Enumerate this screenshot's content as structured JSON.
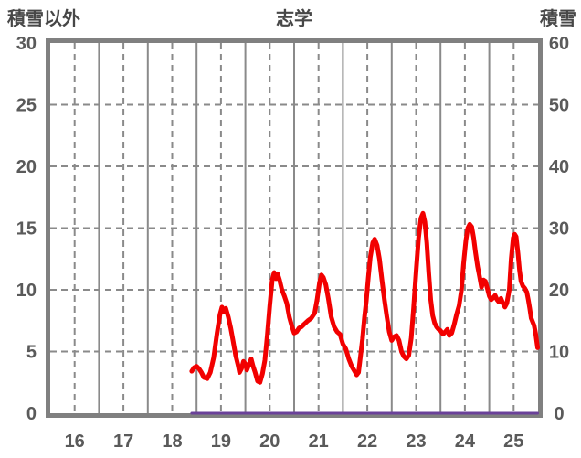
{
  "page": {
    "background": "#ffffff"
  },
  "chart_data": {
    "type": "line",
    "title": "志学",
    "left_axis_title": "積雪以外",
    "right_axis_title": "積雪",
    "left_axis": {
      "min": 0,
      "max": 30,
      "tick_step": 5,
      "ticks": [
        "0",
        "5",
        "10",
        "15",
        "20",
        "25",
        "30"
      ]
    },
    "right_axis": {
      "min": 0,
      "max": 60,
      "tick_step": 10,
      "ticks": [
        "0",
        "10",
        "20",
        "30",
        "40",
        "50",
        "60"
      ]
    },
    "x_axis": {
      "min_day": 16,
      "max_day": 26,
      "tick_labels": [
        "16",
        "17",
        "18",
        "19",
        "20",
        "21",
        "22",
        "23",
        "24",
        "25"
      ],
      "solid_gridlines_at": "day-boundaries",
      "dashed_gridlines_at": "day-midpoints"
    },
    "grid": {
      "on": true,
      "gridline_color": "#8a8a8a",
      "border_color": "#808080"
    },
    "colors": {
      "tick_label": "#5a5a5a",
      "title": "#474747"
    },
    "series": [
      {
        "name": "積雪",
        "axis": "right",
        "color": "#6a4199",
        "width": 3,
        "points": [
          [
            18.9,
            0
          ],
          [
            25.99,
            0
          ]
        ]
      },
      {
        "name": "積雪以外",
        "axis": "left",
        "color": "#f20000",
        "width": 5,
        "points": [
          [
            18.9,
            3.4
          ],
          [
            18.95,
            3.7
          ],
          [
            19.0,
            3.8
          ],
          [
            19.05,
            3.6
          ],
          [
            19.1,
            3.3
          ],
          [
            19.15,
            2.9
          ],
          [
            19.22,
            2.8
          ],
          [
            19.28,
            3.3
          ],
          [
            19.35,
            4.5
          ],
          [
            19.42,
            6.5
          ],
          [
            19.48,
            8.0
          ],
          [
            19.52,
            8.6
          ],
          [
            19.56,
            8.2
          ],
          [
            19.6,
            8.5
          ],
          [
            19.65,
            7.8
          ],
          [
            19.7,
            6.9
          ],
          [
            19.75,
            5.8
          ],
          [
            19.8,
            4.7
          ],
          [
            19.85,
            3.9
          ],
          [
            19.88,
            3.3
          ],
          [
            19.92,
            3.6
          ],
          [
            19.96,
            4.2
          ],
          [
            20.0,
            4.0
          ],
          [
            20.03,
            3.5
          ],
          [
            20.07,
            3.9
          ],
          [
            20.12,
            4.4
          ],
          [
            20.16,
            3.8
          ],
          [
            20.2,
            3.3
          ],
          [
            20.25,
            2.6
          ],
          [
            20.3,
            2.5
          ],
          [
            20.35,
            3.2
          ],
          [
            20.4,
            4.3
          ],
          [
            20.45,
            6.3
          ],
          [
            20.5,
            8.7
          ],
          [
            20.55,
            10.8
          ],
          [
            20.59,
            11.4
          ],
          [
            20.63,
            10.9
          ],
          [
            20.66,
            11.3
          ],
          [
            20.7,
            10.8
          ],
          [
            20.75,
            10.0
          ],
          [
            20.8,
            9.5
          ],
          [
            20.85,
            8.9
          ],
          [
            20.9,
            7.8
          ],
          [
            20.95,
            7.1
          ],
          [
            21.0,
            6.5
          ],
          [
            21.05,
            6.6
          ],
          [
            21.1,
            6.9
          ],
          [
            21.15,
            7.0
          ],
          [
            21.2,
            7.2
          ],
          [
            21.28,
            7.5
          ],
          [
            21.35,
            7.7
          ],
          [
            21.42,
            8.1
          ],
          [
            21.47,
            9.2
          ],
          [
            21.52,
            10.6
          ],
          [
            21.56,
            11.2
          ],
          [
            21.6,
            11.0
          ],
          [
            21.65,
            10.4
          ],
          [
            21.7,
            9.3
          ],
          [
            21.76,
            7.8
          ],
          [
            21.82,
            7.0
          ],
          [
            21.88,
            6.6
          ],
          [
            21.94,
            6.4
          ],
          [
            22.0,
            5.6
          ],
          [
            22.06,
            5.2
          ],
          [
            22.12,
            4.4
          ],
          [
            22.18,
            3.8
          ],
          [
            22.24,
            3.4
          ],
          [
            22.28,
            3.1
          ],
          [
            22.32,
            3.3
          ],
          [
            22.36,
            4.6
          ],
          [
            22.4,
            6.0
          ],
          [
            22.44,
            7.7
          ],
          [
            22.48,
            9.1
          ],
          [
            22.52,
            11.0
          ],
          [
            22.56,
            12.6
          ],
          [
            22.61,
            13.8
          ],
          [
            22.65,
            14.1
          ],
          [
            22.7,
            13.6
          ],
          [
            22.75,
            12.5
          ],
          [
            22.8,
            10.8
          ],
          [
            22.85,
            9.2
          ],
          [
            22.9,
            7.8
          ],
          [
            22.95,
            6.6
          ],
          [
            23.0,
            5.9
          ],
          [
            23.05,
            6.2
          ],
          [
            23.1,
            6.3
          ],
          [
            23.15,
            5.9
          ],
          [
            23.2,
            5.0
          ],
          [
            23.25,
            4.6
          ],
          [
            23.3,
            4.4
          ],
          [
            23.35,
            4.7
          ],
          [
            23.4,
            6.1
          ],
          [
            23.45,
            8.6
          ],
          [
            23.5,
            11.5
          ],
          [
            23.55,
            14.2
          ],
          [
            23.6,
            15.8
          ],
          [
            23.64,
            16.2
          ],
          [
            23.68,
            15.5
          ],
          [
            23.72,
            13.8
          ],
          [
            23.76,
            11.3
          ],
          [
            23.8,
            9.2
          ],
          [
            23.84,
            7.9
          ],
          [
            23.88,
            7.3
          ],
          [
            23.92,
            7.0
          ],
          [
            23.96,
            6.8
          ],
          [
            24.0,
            6.7
          ],
          [
            24.05,
            6.4
          ],
          [
            24.1,
            6.6
          ],
          [
            24.14,
            6.8
          ],
          [
            24.18,
            6.3
          ],
          [
            24.23,
            6.5
          ],
          [
            24.28,
            7.2
          ],
          [
            24.33,
            8.0
          ],
          [
            24.38,
            8.7
          ],
          [
            24.43,
            10.0
          ],
          [
            24.47,
            12.0
          ],
          [
            24.52,
            14.0
          ],
          [
            24.56,
            15.0
          ],
          [
            24.6,
            15.3
          ],
          [
            24.64,
            15.1
          ],
          [
            24.68,
            14.2
          ],
          [
            24.72,
            13.0
          ],
          [
            24.76,
            11.9
          ],
          [
            24.8,
            11.1
          ],
          [
            24.84,
            10.2
          ],
          [
            24.88,
            10.8
          ],
          [
            24.92,
            10.7
          ],
          [
            24.96,
            10.1
          ],
          [
            25.0,
            9.5
          ],
          [
            25.04,
            9.2
          ],
          [
            25.08,
            9.35
          ],
          [
            25.12,
            9.55
          ],
          [
            25.16,
            9.2
          ],
          [
            25.2,
            9.0
          ],
          [
            25.24,
            9.3
          ],
          [
            25.28,
            8.9
          ],
          [
            25.32,
            8.6
          ],
          [
            25.36,
            8.9
          ],
          [
            25.41,
            10.0
          ],
          [
            25.45,
            12.5
          ],
          [
            25.49,
            14.2
          ],
          [
            25.52,
            14.5
          ],
          [
            25.55,
            14.3
          ],
          [
            25.59,
            12.9
          ],
          [
            25.62,
            11.6
          ],
          [
            25.65,
            10.7
          ],
          [
            25.69,
            10.3
          ],
          [
            25.73,
            10.1
          ],
          [
            25.77,
            9.8
          ],
          [
            25.8,
            9.2
          ],
          [
            25.83,
            8.5
          ],
          [
            25.86,
            7.7
          ],
          [
            25.89,
            7.4
          ],
          [
            25.92,
            7.1
          ],
          [
            25.95,
            6.5
          ],
          [
            25.97,
            5.9
          ],
          [
            25.99,
            5.3
          ]
        ]
      }
    ]
  }
}
